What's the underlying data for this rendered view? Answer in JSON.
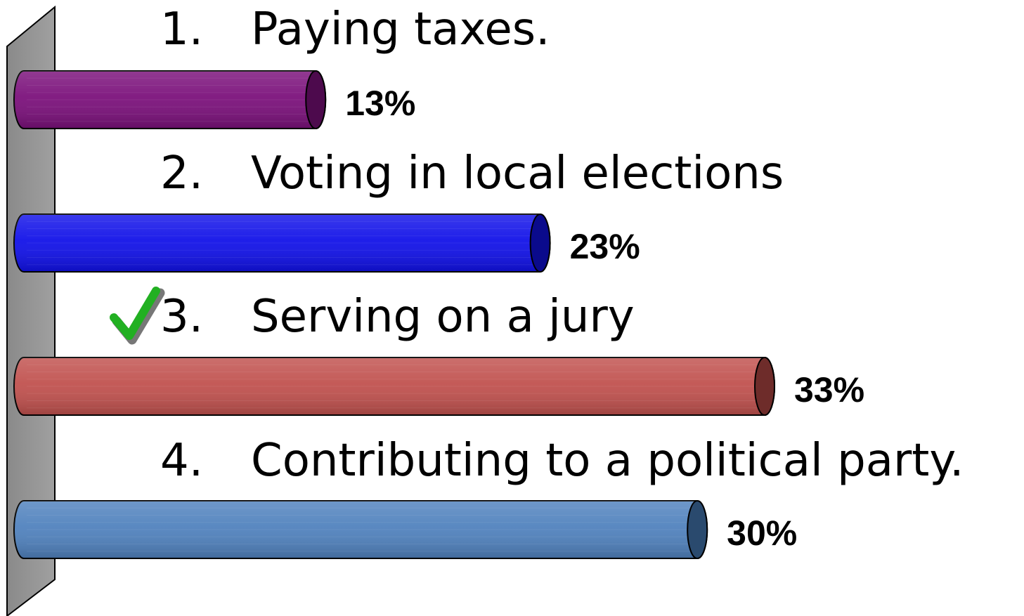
{
  "chart_data": {
    "type": "bar",
    "orientation": "horizontal",
    "categories": [
      "Paying taxes.",
      "Voting in local elections",
      "Serving on a jury",
      "Contributing to a political party."
    ],
    "numbers": [
      "1.",
      "2.",
      "3.",
      "4."
    ],
    "values": [
      13,
      23,
      33,
      30
    ],
    "value_labels": [
      "13%",
      "23%",
      "33%",
      "30%"
    ],
    "colors": [
      "#7a0f7a",
      "#1010e8",
      "#c0504d",
      "#4f81bd"
    ],
    "cap_colors": [
      "#4d0a4d",
      "#0a0a8c",
      "#6e2c2a",
      "#2a4a6e"
    ],
    "correct_index": 2,
    "correct_mark_icon": "checkmark-icon",
    "correct_mark_color": "#22b022",
    "xlim": [
      0,
      34
    ],
    "grid": false,
    "legend": "none"
  }
}
